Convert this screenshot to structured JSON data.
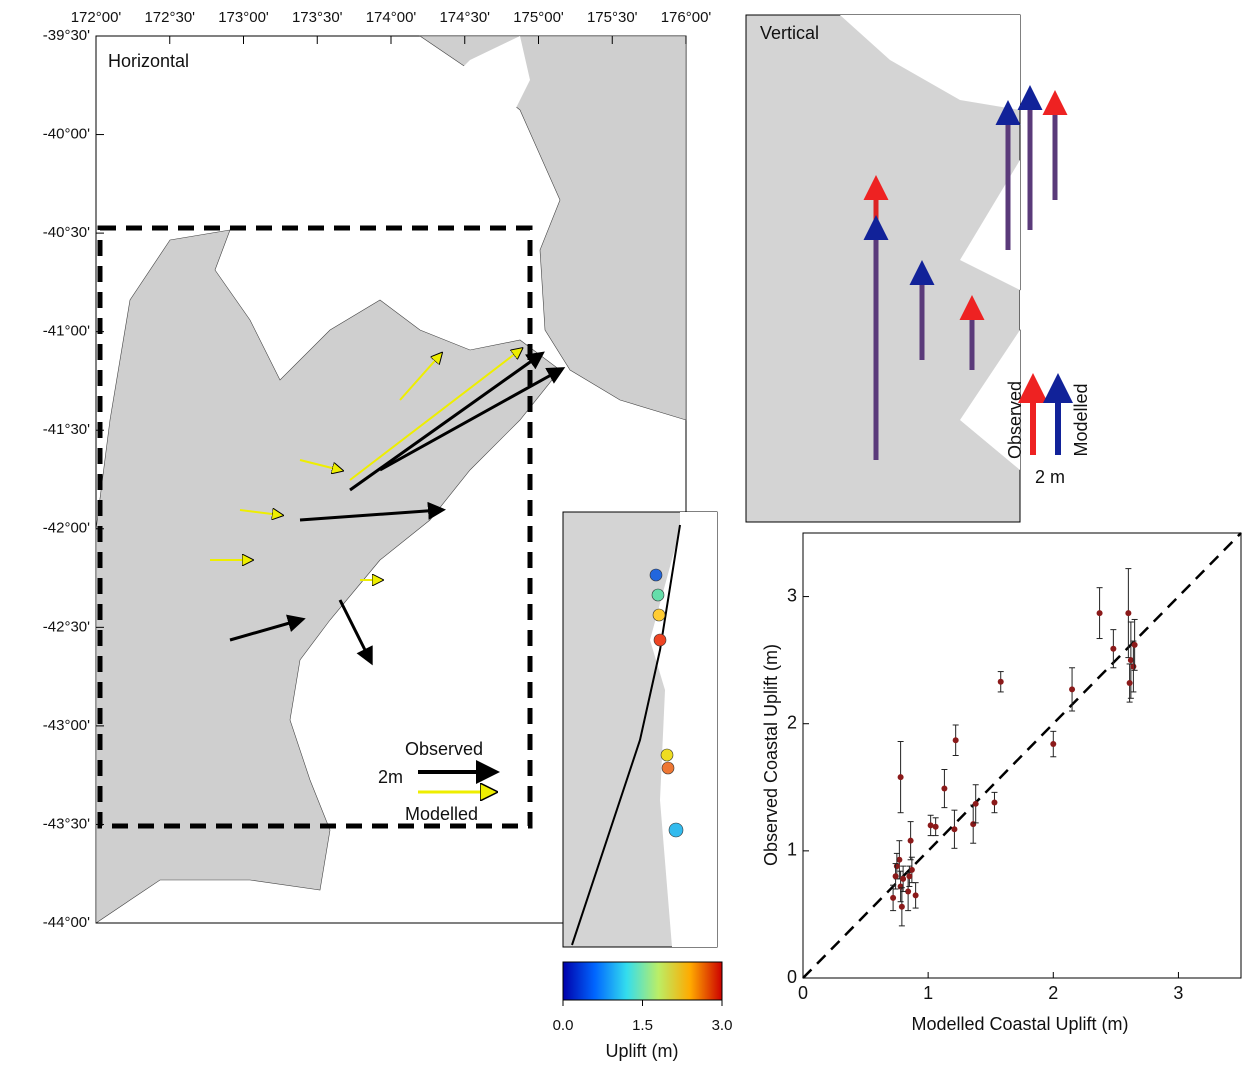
{
  "map_horizontal": {
    "title": "Horizontal",
    "lon_labels": [
      "172°00'",
      "172°30'",
      "173°00'",
      "173°30'",
      "174°00'",
      "174°30'",
      "175°00'",
      "175°30'",
      "176°00'"
    ],
    "lat_labels": [
      "-39°30'",
      "-40°00'",
      "-40°30'",
      "-41°00'",
      "-41°30'",
      "-42°00'",
      "-42°30'",
      "-43°00'",
      "-43°30'",
      "-44°00'"
    ],
    "legend": {
      "observed": "Observed",
      "scale": "2m",
      "modelled": "Modelled"
    }
  },
  "map_vertical": {
    "title": "Vertical",
    "legend": {
      "observed": "Observed",
      "modelled": "Modelled",
      "scale": "2 m"
    }
  },
  "colorbar": {
    "label": "Uplift (m)",
    "lim": [
      0,
      3
    ],
    "ticks": [
      {
        "value": 0,
        "label": "0.0"
      },
      {
        "value": 1.5,
        "label": "1.5"
      },
      {
        "value": 3,
        "label": "3.0"
      }
    ]
  },
  "chart_data": {
    "type": "scatter",
    "x_label": "Modelled Coastal Uplift (m)",
    "y_label": "Observed Coastal Uplift (m)",
    "x": [
      2.37,
      2.48,
      2.6,
      2.62,
      2.64,
      2.61,
      2.65,
      2.15,
      2.0,
      1.58,
      1.22,
      1.13,
      1.21,
      1.36,
      1.38,
      1.53,
      1.02,
      1.06,
      0.78,
      0.86,
      0.77,
      0.75,
      0.74,
      0.72,
      0.78,
      0.79,
      0.84,
      0.87,
      0.9,
      0.85,
      0.8
    ],
    "values": [
      2.87,
      2.59,
      2.87,
      2.5,
      2.45,
      2.32,
      2.62,
      2.27,
      1.84,
      2.33,
      1.87,
      1.49,
      1.17,
      1.21,
      1.37,
      1.38,
      1.2,
      1.19,
      1.58,
      1.08,
      0.93,
      0.88,
      0.8,
      0.63,
      0.72,
      0.56,
      0.68,
      0.85,
      0.65,
      0.8,
      0.78
    ],
    "errors": [
      0.2,
      0.15,
      0.35,
      0.3,
      0.2,
      0.15,
      0.2,
      0.17,
      0.1,
      0.08,
      0.12,
      0.15,
      0.15,
      0.15,
      0.15,
      0.08,
      0.08,
      0.07,
      0.28,
      0.15,
      0.15,
      0.1,
      0.1,
      0.1,
      0.12,
      0.15,
      0.15,
      0.1,
      0.1,
      0.08,
      0.1
    ],
    "color": "#8b1a1a",
    "xlim": [
      0,
      3.5
    ],
    "ylim": [
      0,
      3.5
    ],
    "xticks": [
      0,
      1,
      2,
      3
    ],
    "yticks": [
      0,
      1,
      2,
      3
    ]
  }
}
